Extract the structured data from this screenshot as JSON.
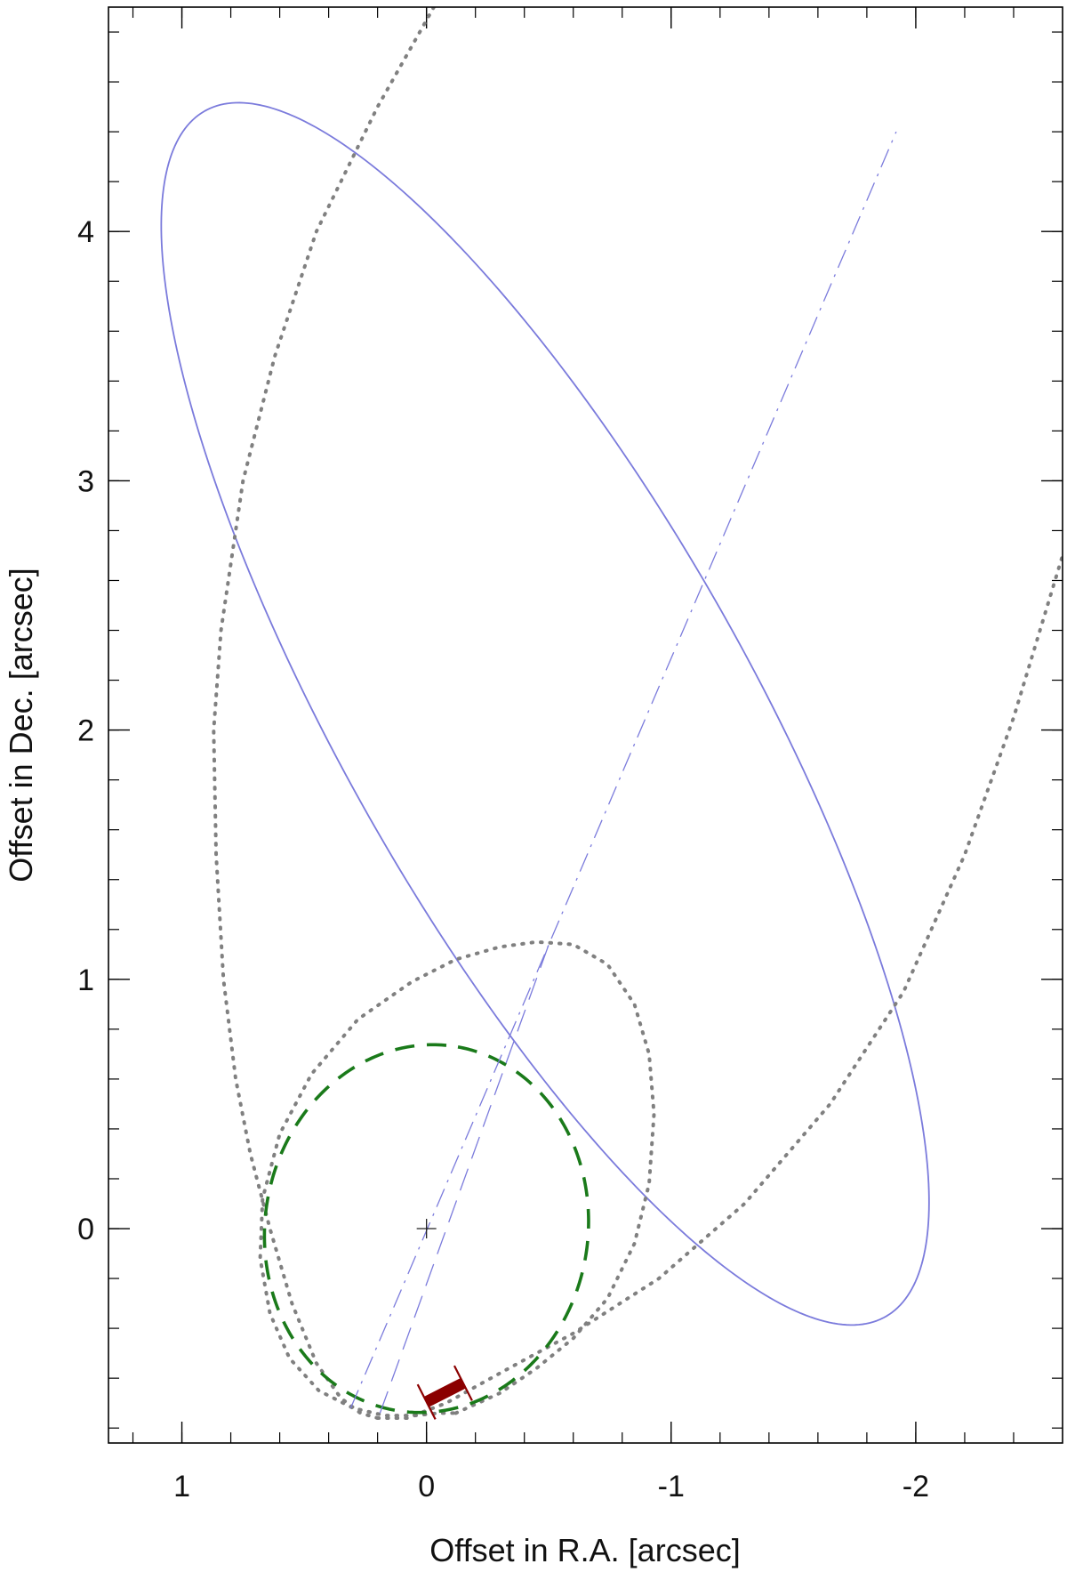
{
  "chart_data": {
    "type": "line",
    "title": "",
    "xlabel": "Offset in R.A. [arcsec]",
    "ylabel": "Offset in Dec. [arcsec]",
    "xlim": [
      1.3,
      -2.6
    ],
    "ylim": [
      -0.86,
      4.9
    ],
    "x_reversed": true,
    "grid": false,
    "legend": "none",
    "x_ticks": [
      1,
      0,
      -1,
      -2
    ],
    "y_ticks": [
      0,
      1,
      2,
      3,
      4
    ],
    "x_tick_labels": [
      "1",
      "0",
      "-1",
      "-2"
    ],
    "y_tick_labels": [
      "0",
      "1",
      "2",
      "3",
      "4"
    ],
    "x_minor_step": 0.2,
    "y_minor_step": 0.2,
    "center_marker": [
      0,
      0
    ],
    "series": [
      {
        "style": "solid",
        "color": "#7b7bdc",
        "shape": "ellipse",
        "center": [
          -0.485,
          2.065
        ],
        "semi_major": 2.79,
        "semi_minor": 0.83,
        "major_axis_direction_deg": 60.0
      },
      {
        "style": "dotted",
        "color": "#808080",
        "shape": "outer-arc",
        "x": [
          -0.03,
          0.2,
          0.45,
          0.62,
          0.75,
          0.84,
          0.87,
          0.86,
          0.83,
          0.78,
          0.72,
          0.64,
          0.55,
          0.45,
          0.35,
          0.27,
          0.2
        ],
        "y": [
          4.9,
          4.5,
          4.0,
          3.5,
          3.0,
          2.4,
          2.0,
          1.5,
          1.0,
          0.6,
          0.3,
          0.0,
          -0.3,
          -0.54,
          -0.68,
          -0.74,
          -0.76
        ]
      },
      {
        "style": "dotted",
        "color": "#808080",
        "shape": "outer-arc",
        "x": [
          0.2,
          0.08,
          -0.08,
          -0.3,
          -0.6,
          -0.95,
          -1.3,
          -1.65,
          -1.95,
          -2.2,
          -2.4,
          -2.6
        ],
        "y": [
          -0.76,
          -0.76,
          -0.7,
          -0.58,
          -0.42,
          -0.2,
          0.1,
          0.5,
          0.95,
          1.5,
          2.05,
          2.7
        ]
      },
      {
        "style": "dotted",
        "color": "#808080",
        "shape": "inner-loop",
        "x": [
          -0.12,
          -0.3,
          -0.45,
          -0.6,
          -0.74,
          -0.85,
          -0.91,
          -0.93,
          -0.91,
          -0.85,
          -0.74,
          -0.6,
          -0.45,
          -0.3,
          -0.12,
          0.06,
          0.28,
          0.47,
          0.6,
          0.67,
          0.68,
          0.64,
          0.56,
          0.44,
          0.3,
          0.17,
          0.05,
          -0.05,
          -0.12
        ],
        "y": [
          -0.74,
          -0.66,
          -0.56,
          -0.44,
          -0.28,
          -0.06,
          0.18,
          0.46,
          0.7,
          0.9,
          1.06,
          1.14,
          1.15,
          1.13,
          1.08,
          0.99,
          0.84,
          0.62,
          0.38,
          0.12,
          -0.12,
          -0.34,
          -0.52,
          -0.65,
          -0.72,
          -0.75,
          -0.75,
          -0.74,
          -0.74
        ]
      },
      {
        "style": "dashed",
        "color": "#1a7a1a",
        "shape": "ellipse",
        "center": [
          0.0,
          0.0
        ],
        "semi_major": 0.74,
        "semi_minor": 0.66,
        "major_axis_direction_deg": 100.0
      },
      {
        "style": "dashdot",
        "color": "#7b7bdc",
        "shape": "line",
        "x": [
          0.31,
          -1.92
        ],
        "y": [
          -0.72,
          4.4
        ]
      },
      {
        "style": "longdash",
        "color": "#7b7bdc",
        "shape": "line",
        "x": [
          0.19,
          -0.5
        ],
        "y": [
          -0.74,
          1.14
        ]
      },
      {
        "style": "thick",
        "color": "#8b0000",
        "shape": "arc-segment",
        "x": [
          0.0,
          -0.15
        ],
        "y": [
          -0.695,
          -0.62
        ]
      }
    ]
  }
}
